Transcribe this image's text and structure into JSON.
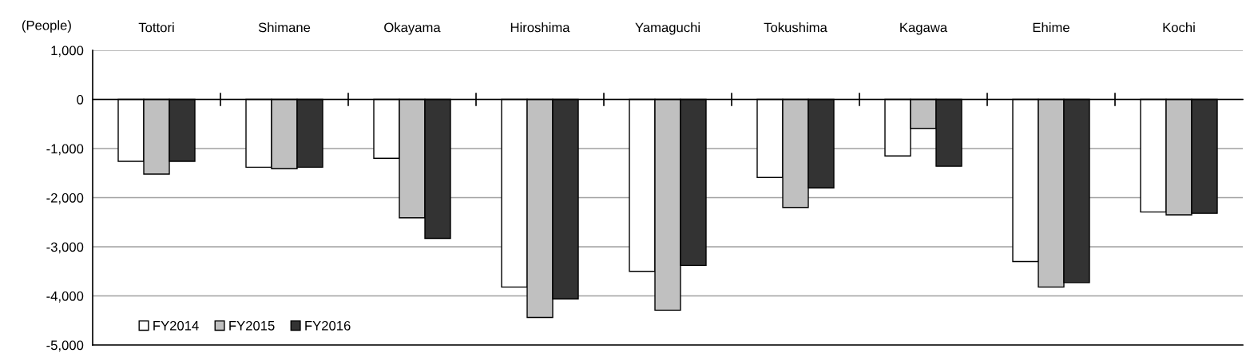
{
  "chart_data": {
    "type": "bar",
    "ylabel": "(People)",
    "categories": [
      "Tottori",
      "Shimane",
      "Okayama",
      "Hiroshima",
      "Yamaguchi",
      "Tokushima",
      "Kagawa",
      "Ehime",
      "Kochi"
    ],
    "series": [
      {
        "name": "FY2014",
        "color": "#ffffff",
        "values": [
          -1260,
          -1380,
          -1200,
          -3820,
          -3500,
          -1590,
          -1150,
          -3300,
          -2290
        ]
      },
      {
        "name": "FY2015",
        "color": "#c0c0c0",
        "values": [
          -1520,
          -1410,
          -2410,
          -4440,
          -4290,
          -2200,
          -590,
          -3820,
          -2350
        ]
      },
      {
        "name": "FY2016",
        "color": "#333333",
        "values": [
          -1260,
          -1380,
          -2830,
          -4060,
          -3380,
          -1800,
          -1360,
          -3730,
          -2320
        ]
      }
    ],
    "ylim": [
      -5000,
      1000
    ],
    "yticks": [
      {
        "value": -5000,
        "label": "-5,000"
      },
      {
        "value": -4000,
        "label": "-4,000"
      },
      {
        "value": -3000,
        "label": "-3,000"
      },
      {
        "value": -2000,
        "label": "-2,000"
      },
      {
        "value": -1000,
        "label": "-1,000"
      },
      0,
      {
        "value": 1000,
        "label": "1,000"
      }
    ],
    "grid": "y",
    "legend": "bottom left"
  }
}
